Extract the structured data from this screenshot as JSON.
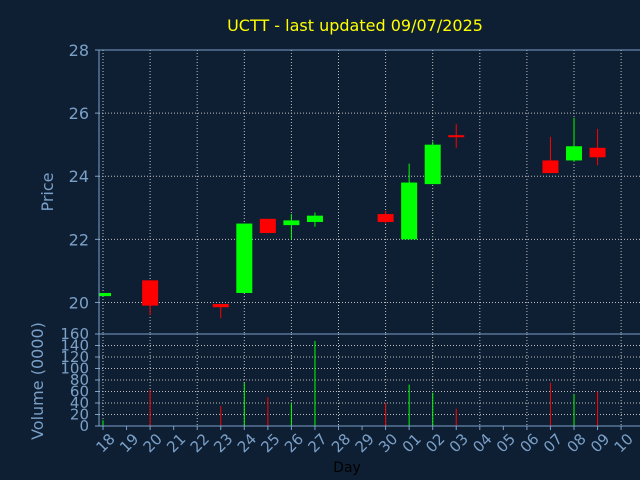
{
  "chart_data": {
    "type": "candlestick",
    "title": "UCTT - last updated 09/07/2025",
    "xlabel": "Day",
    "ylabel": "Price",
    "ylim": [
      19,
      28
    ],
    "yticks": [
      20,
      22,
      24,
      26,
      28
    ],
    "volume_label": "Volume (0000)",
    "volume_ylim": [
      0,
      160
    ],
    "volume_yticks": [
      0,
      20,
      40,
      60,
      80,
      100,
      120,
      140,
      160
    ],
    "x_tick_labels": [
      "18",
      "19",
      "20",
      "21",
      "22",
      "23",
      "24",
      "25",
      "26",
      "27",
      "28",
      "29",
      "30",
      "01",
      "02",
      "03",
      "04",
      "05",
      "06",
      "07",
      "08",
      "09",
      "10"
    ],
    "grid": true,
    "colors": {
      "up": "#00ff00",
      "down": "#ff0000",
      "background": "#0f1f33",
      "axis": "#7aa0c8",
      "grid": "#bfbfbf",
      "title": "#ffff00"
    },
    "candles": [
      {
        "x": "18",
        "open": 20.2,
        "high": 20.3,
        "low": 20.2,
        "close": 20.3,
        "volume": 10
      },
      {
        "x": "20",
        "open": 20.7,
        "high": 20.7,
        "low": 19.6,
        "close": 19.9,
        "volume": 63
      },
      {
        "x": "23",
        "open": 19.95,
        "high": 19.95,
        "low": 19.5,
        "close": 19.85,
        "volume": 35
      },
      {
        "x": "24",
        "open": 20.3,
        "high": 22.5,
        "low": 20.3,
        "close": 22.5,
        "volume": 75
      },
      {
        "x": "25",
        "open": 22.65,
        "high": 22.65,
        "low": 22.2,
        "close": 22.2,
        "volume": 50
      },
      {
        "x": "26",
        "open": 22.45,
        "high": 22.8,
        "low": 22.0,
        "close": 22.6,
        "volume": 40
      },
      {
        "x": "27",
        "open": 22.55,
        "high": 22.85,
        "low": 22.4,
        "close": 22.75,
        "volume": 148
      },
      {
        "x": "30",
        "open": 22.8,
        "high": 22.9,
        "low": 22.5,
        "close": 22.55,
        "volume": 40
      },
      {
        "x": "01",
        "open": 22.0,
        "high": 24.4,
        "low": 22.0,
        "close": 23.8,
        "volume": 72
      },
      {
        "x": "02",
        "open": 23.75,
        "high": 25.1,
        "low": 23.75,
        "close": 25.0,
        "volume": 58
      },
      {
        "x": "03",
        "open": 25.3,
        "high": 25.65,
        "low": 24.9,
        "close": 25.25,
        "volume": 30
      },
      {
        "x": "07",
        "open": 24.5,
        "high": 25.25,
        "low": 24.1,
        "close": 24.1,
        "volume": 75
      },
      {
        "x": "08",
        "open": 24.5,
        "high": 25.85,
        "low": 24.45,
        "close": 24.95,
        "volume": 55
      },
      {
        "x": "09",
        "open": 24.9,
        "high": 25.5,
        "low": 24.35,
        "close": 24.6,
        "volume": 60
      }
    ]
  }
}
